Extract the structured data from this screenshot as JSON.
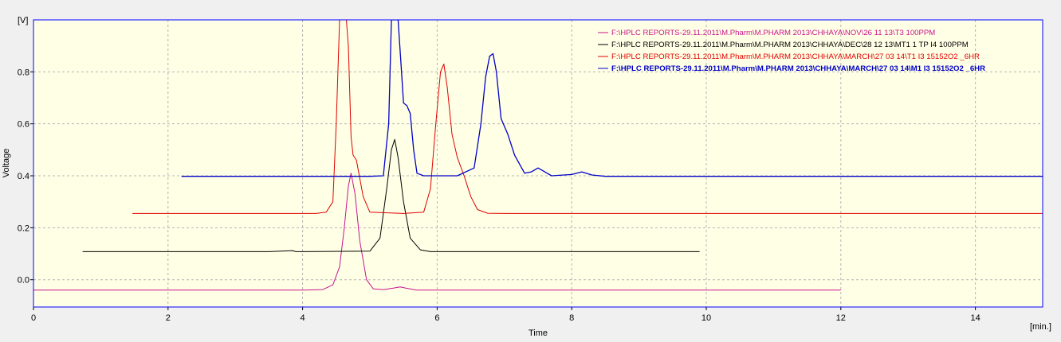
{
  "chart_data": {
    "type": "line",
    "title": "",
    "xlabel": "Time",
    "ylabel": "Voltage",
    "x_unit": "[min.]",
    "y_unit": "[V]",
    "xlim": [
      0,
      15
    ],
    "ylim": [
      -0.105,
      1.0
    ],
    "x_ticks": [
      "0",
      "2",
      "4",
      "6",
      "8",
      "10",
      "12",
      "14"
    ],
    "x_tick_values": [
      0,
      2,
      4,
      6,
      8,
      10,
      12,
      14
    ],
    "y_ticks": [
      "0.0",
      "0.2",
      "0.4",
      "0.6",
      "0.8"
    ],
    "y_tick_values": [
      0.0,
      0.2,
      0.4,
      0.6,
      0.8
    ],
    "grid": true,
    "legend_position": "top-right",
    "colors": {
      "plot_background": "#ffffe6",
      "axis": "#0000ff",
      "grid": "#b4b4b4"
    },
    "series": [
      {
        "name": "F:\\HPLC REPORTS-29.11.2011\\M.Pharm\\M.PHARM 2013\\CHHAYA\\NOV\\26 11 13\\T3 100PPM",
        "color": "#c8148c",
        "bold": false,
        "x": [
          0.0,
          4.0,
          4.3,
          4.45,
          4.55,
          4.62,
          4.68,
          4.72,
          4.78,
          4.85,
          4.95,
          5.05,
          5.2,
          5.35,
          5.45,
          5.55,
          5.7,
          12.0
        ],
        "y": [
          -0.04,
          -0.04,
          -0.038,
          -0.02,
          0.05,
          0.2,
          0.36,
          0.41,
          0.33,
          0.15,
          0.0,
          -0.035,
          -0.038,
          -0.032,
          -0.028,
          -0.033,
          -0.04,
          -0.04
        ]
      },
      {
        "name": "F:\\HPLC REPORTS-29.11.2011\\M.Pharm\\M.PHARM 2013\\CHHAYA\\DEC\\28 12 13\\MT1  1 TP I4  100PPM",
        "color": "#000000",
        "bold": false,
        "x": [
          0.73,
          3.5,
          3.85,
          3.9,
          4.0,
          5.0,
          5.15,
          5.25,
          5.32,
          5.37,
          5.42,
          5.5,
          5.6,
          5.75,
          5.9,
          6.3,
          9.9
        ],
        "y": [
          0.108,
          0.108,
          0.112,
          0.108,
          0.108,
          0.11,
          0.16,
          0.35,
          0.5,
          0.54,
          0.47,
          0.3,
          0.16,
          0.115,
          0.108,
          0.108,
          0.108
        ]
      },
      {
        "name": "F:\\HPLC REPORTS-29.11.2011\\M.Pharm\\M.PHARM 2013\\CHHAYA\\MARCH\\27 03 14\\T1 I3 15152O2 _6HR",
        "color": "#e00000",
        "bold": false,
        "x": [
          1.47,
          4.2,
          4.35,
          4.45,
          4.5,
          4.55,
          4.6,
          4.65,
          4.68,
          4.72,
          4.75,
          4.8,
          4.9,
          5.0,
          5.5,
          5.8,
          5.9,
          5.98,
          6.05,
          6.1,
          6.15,
          6.22,
          6.3,
          6.4,
          6.5,
          6.6,
          6.75,
          7.0,
          15.0
        ],
        "y": [
          0.255,
          0.255,
          0.26,
          0.3,
          0.6,
          1.0,
          1.0,
          1.0,
          0.9,
          0.55,
          0.48,
          0.46,
          0.32,
          0.26,
          0.255,
          0.26,
          0.35,
          0.6,
          0.8,
          0.83,
          0.74,
          0.56,
          0.47,
          0.4,
          0.32,
          0.27,
          0.256,
          0.255,
          0.255
        ]
      },
      {
        "name": "F:\\HPLC REPORTS-29.11.2011\\M.Pharm\\M.PHARM 2013\\CHHAYA\\MARCH\\27 03 14\\M1 I3 15152O2 _6HR",
        "color": "#0000c8",
        "bold": true,
        "x": [
          2.2,
          5.0,
          5.2,
          5.28,
          5.32,
          5.36,
          5.42,
          5.47,
          5.5,
          5.55,
          5.6,
          5.65,
          5.7,
          5.8,
          6.3,
          6.55,
          6.65,
          6.72,
          6.78,
          6.83,
          6.88,
          6.95,
          7.05,
          7.15,
          7.3,
          7.4,
          7.5,
          7.6,
          7.7,
          8.0,
          8.15,
          8.3,
          8.5,
          10.0,
          15.0
        ],
        "y": [
          0.398,
          0.398,
          0.4,
          0.6,
          1.0,
          1.0,
          1.0,
          0.8,
          0.68,
          0.67,
          0.64,
          0.5,
          0.41,
          0.4,
          0.4,
          0.43,
          0.6,
          0.78,
          0.86,
          0.87,
          0.8,
          0.62,
          0.56,
          0.48,
          0.41,
          0.415,
          0.43,
          0.415,
          0.4,
          0.405,
          0.415,
          0.403,
          0.398,
          0.398,
          0.398
        ]
      }
    ]
  }
}
